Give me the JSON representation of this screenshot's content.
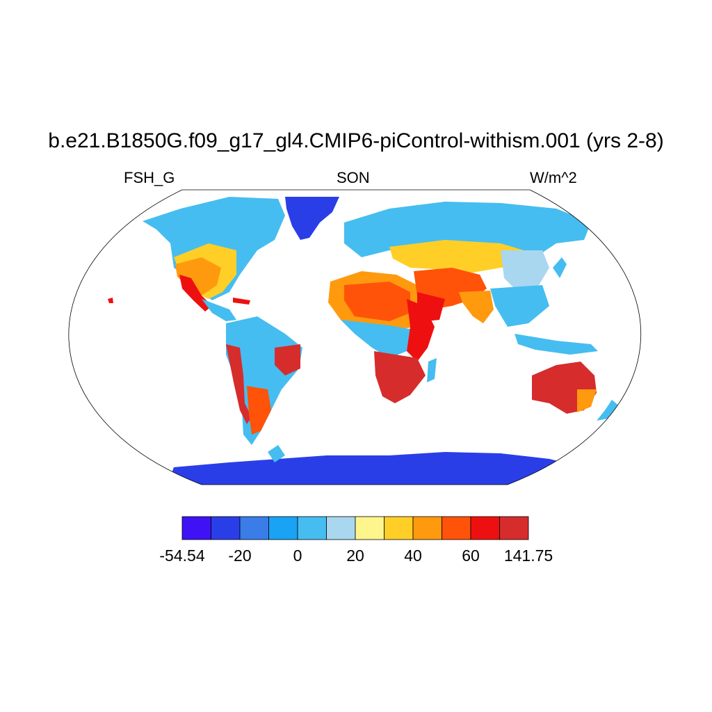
{
  "title": "b.e21.B1850G.f09_g17_gl4.CMIP6-piControl-withism.001 (yrs 2-8)",
  "left_label": "FSH_G",
  "center_label": "SON",
  "right_label": "W/m^2",
  "colorbar": {
    "colors": [
      "#3f12f5",
      "#2a3ee8",
      "#3a7ce8",
      "#1aa3f5",
      "#45bdf0",
      "#a9d7ef",
      "#fff58d",
      "#ffcf28",
      "#ff9a0e",
      "#ff5309",
      "#ee1010",
      "#d62c2c"
    ],
    "tick_labels": [
      "-54.54",
      "-20",
      "0",
      "20",
      "40",
      "60",
      "141.75"
    ]
  },
  "colors": {
    "ocean": "#ffffff",
    "ice_sheet": "#2a3ee8",
    "hot_land": "#d62c2c",
    "warm_land": "#ff9a0e",
    "mild_land": "#ffcf28",
    "cool_land": "#45bdf0",
    "cold_land": "#3a7ce8",
    "coast": "#000000"
  }
}
